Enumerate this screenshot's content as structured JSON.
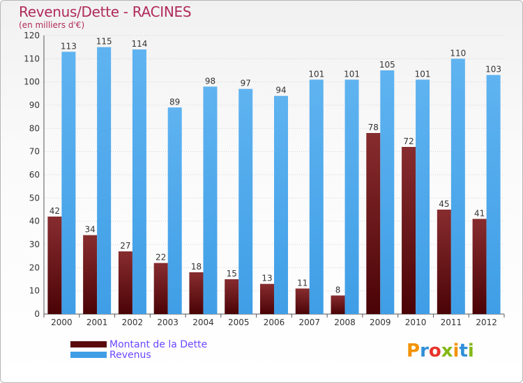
{
  "header": {
    "title": "Revenus/Dette - RACINES",
    "subtitle": "(en milliers d'€)"
  },
  "colors": {
    "dette": "#7a1518",
    "revenus": "#3f9ee6",
    "title": "#b02a5a",
    "legend_text": "#6a46ff"
  },
  "chart_data": {
    "type": "bar",
    "title": "Revenus/Dette - RACINES",
    "subtitle": "(en milliers d'€)",
    "xlabel": "",
    "ylabel": "",
    "ylim": [
      0,
      120
    ],
    "yticks": [
      0,
      10,
      20,
      30,
      40,
      50,
      60,
      70,
      80,
      90,
      100,
      110,
      120
    ],
    "grid": true,
    "legend_position": "bottom-left",
    "categories": [
      "2000",
      "2001",
      "2002",
      "2003",
      "2004",
      "2005",
      "2006",
      "2007",
      "2008",
      "2009",
      "2010",
      "2011",
      "2012"
    ],
    "series": [
      {
        "name": "Montant de la Dette",
        "values": [
          42,
          34,
          27,
          22,
          18,
          15,
          13,
          11,
          8,
          78,
          72,
          45,
          41
        ]
      },
      {
        "name": "Revenus",
        "values": [
          113,
          115,
          114,
          89,
          98,
          97,
          94,
          101,
          101,
          105,
          101,
          110,
          103
        ]
      }
    ]
  },
  "legend": {
    "items": [
      {
        "label": "Montant de la Dette"
      },
      {
        "label": "Revenus"
      }
    ]
  },
  "logo": {
    "text": "Proxiti",
    "letter_colors": [
      "#f39200",
      "#2f8fd8",
      "#e8332a",
      "#84b817",
      "#f39200",
      "#2f8fd8",
      "#84b817"
    ]
  }
}
